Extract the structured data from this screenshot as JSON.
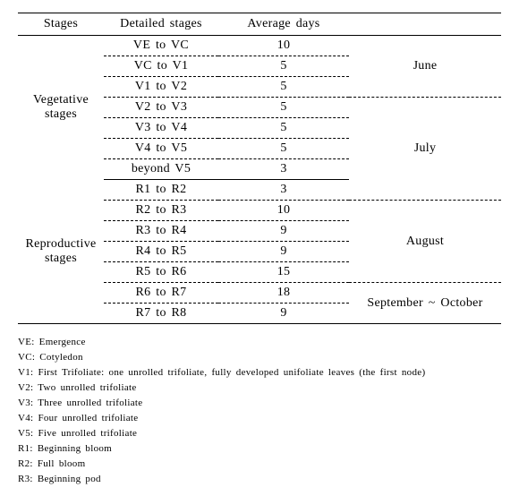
{
  "table": {
    "columns": {
      "c1": "Stages",
      "c2": "Detailed stages",
      "c3": "Average days",
      "c4": ""
    },
    "stages": {
      "vegetative": "Vegetative stages",
      "reproductive": "Reproductive stages"
    },
    "months": {
      "june": "June",
      "july": "July",
      "august": "August",
      "sep_oct": "September ~ October"
    },
    "rows": {
      "r1": {
        "detail": "VE to VC",
        "days": "10"
      },
      "r2": {
        "detail": "VC to V1",
        "days": "5"
      },
      "r3": {
        "detail": "V1 to V2",
        "days": "5"
      },
      "r4": {
        "detail": "V2 to V3",
        "days": "5"
      },
      "r5": {
        "detail": "V3 to V4",
        "days": "5"
      },
      "r6": {
        "detail": "V4 to V5",
        "days": "5"
      },
      "r7": {
        "detail": "beyond V5",
        "days": "3"
      },
      "r8": {
        "detail": "R1 to R2",
        "days": "3"
      },
      "r9": {
        "detail": "R2 to R3",
        "days": "10"
      },
      "r10": {
        "detail": "R3 to R4",
        "days": "9"
      },
      "r11": {
        "detail": "R4 to R5",
        "days": "9"
      },
      "r12": {
        "detail": "R5 to R6",
        "days": "15"
      },
      "r13": {
        "detail": "R6 to R7",
        "days": "18"
      },
      "r14": {
        "detail": "R7 to R8",
        "days": "9"
      }
    }
  },
  "legend": {
    "l1": "VE: Emergence",
    "l2": "VC: Cotyledon",
    "l3": "V1: First Trifoliate: one unrolled trifoliate, fully developed unifoliate leaves (the first node)",
    "l4": "V2: Two unrolled trifoliate",
    "l5": "V3: Three unrolled trifoliate",
    "l6": "V4: Four unrolled trifoliate",
    "l7": "V5: Five unrolled trifoliate",
    "l8": "R1: Beginning bloom",
    "l9": "R2: Full bloom",
    "l10": "R3: Beginning pod"
  }
}
